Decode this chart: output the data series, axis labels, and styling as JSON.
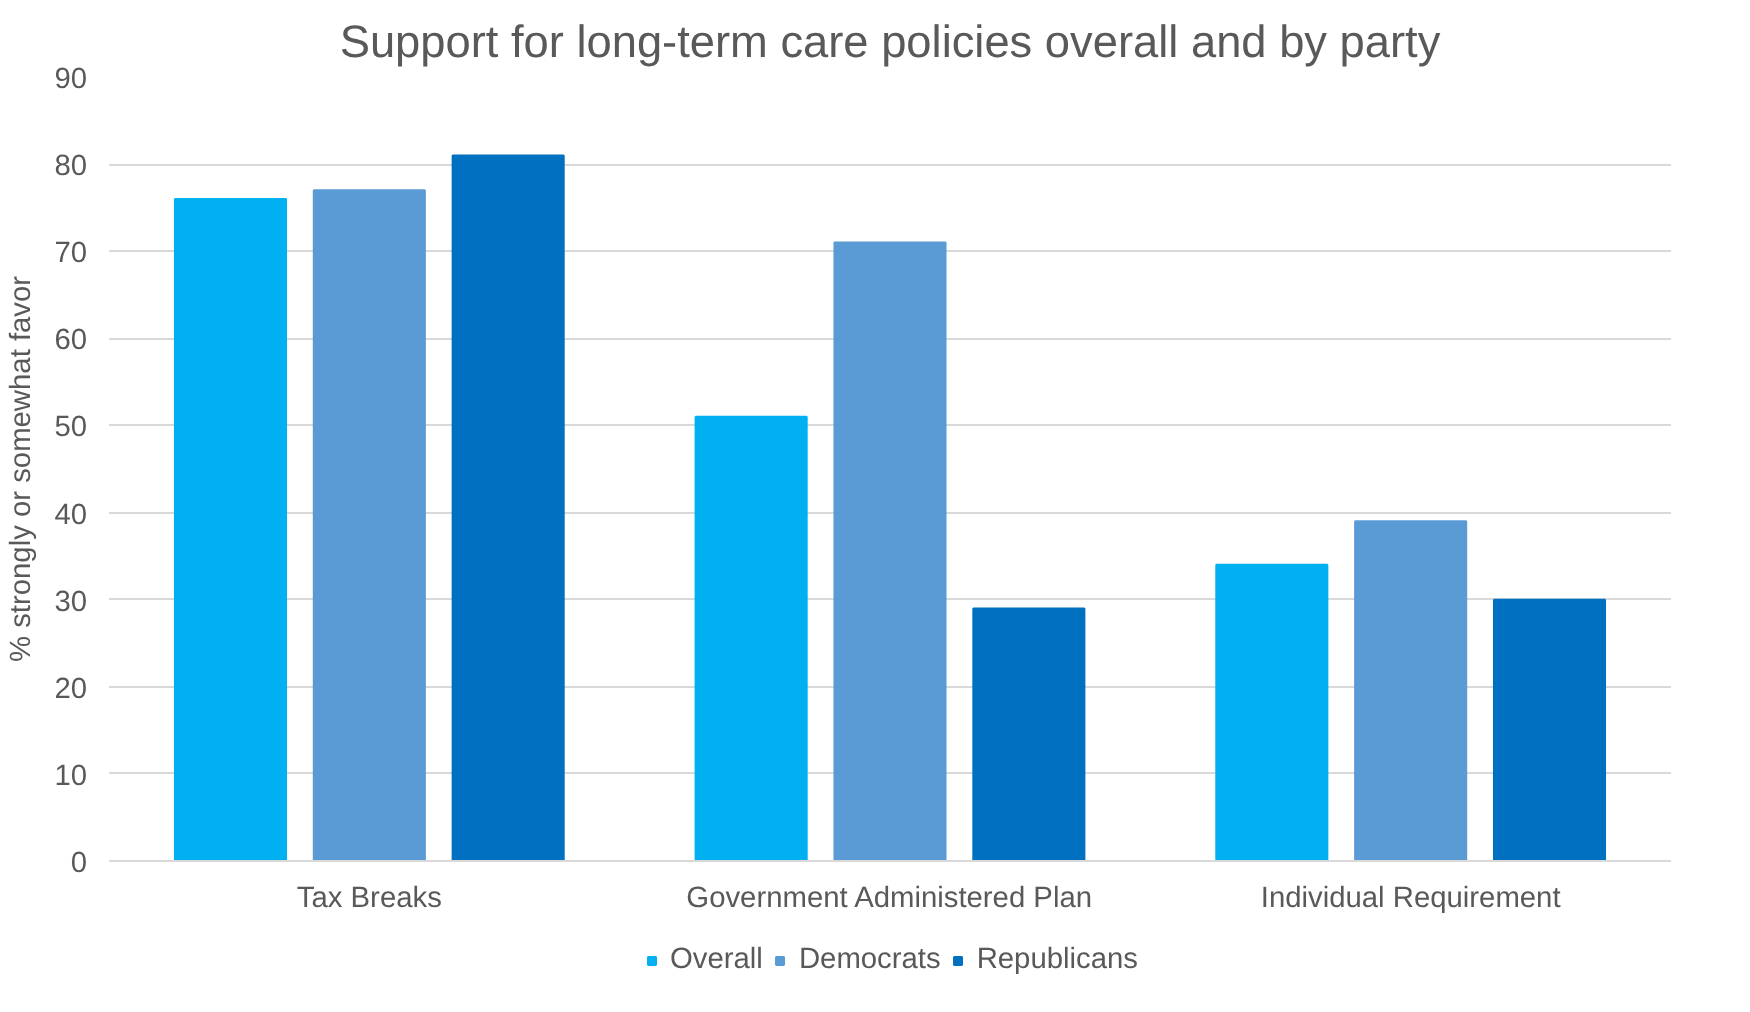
{
  "chart_data": {
    "type": "bar",
    "title": "Support for long-term care policies overall and by party",
    "ylabel": "% strongly or somewhat favor",
    "categories": [
      "Tax Breaks",
      "Government Administered Plan",
      "Individual Requirement"
    ],
    "series": [
      {
        "name": "Overall",
        "color": "#00b0f0",
        "values": [
          76,
          51,
          34
        ]
      },
      {
        "name": "Democrats",
        "color": "#5b9bd5",
        "values": [
          77,
          71,
          39
        ]
      },
      {
        "name": "Republicans",
        "color": "#0070c0",
        "values": [
          81,
          29,
          30
        ]
      }
    ],
    "ylim": [
      0,
      90
    ],
    "yticks": [
      0,
      10,
      20,
      30,
      40,
      50,
      60,
      70,
      80,
      90
    ],
    "grid": "y",
    "legend": "bottom"
  }
}
